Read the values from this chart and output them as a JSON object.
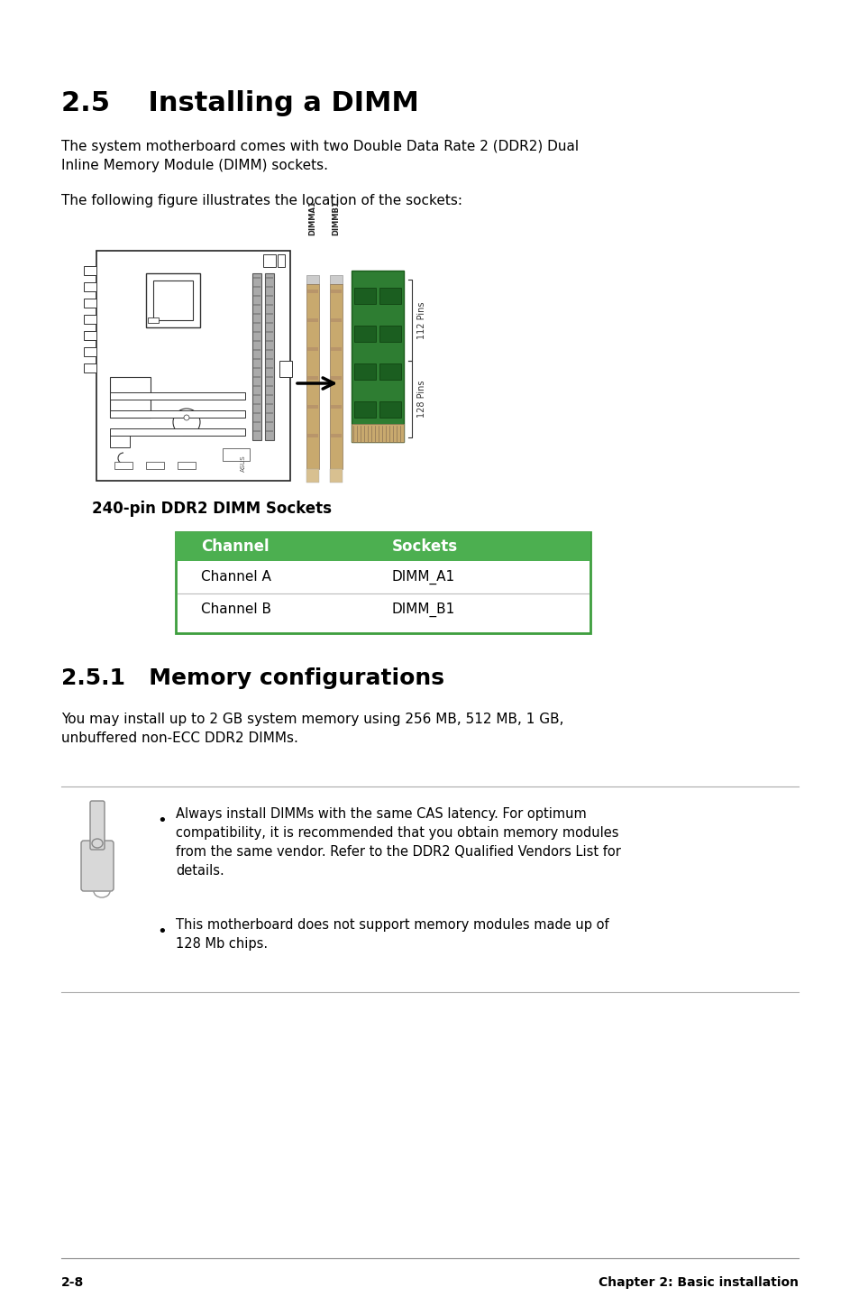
{
  "title": "2.5    Installing a DIMM",
  "section_title": "2.5.1   Memory configurations",
  "intro_text1": "The system motherboard comes with two Double Data Rate 2 (DDR2) Dual\nInline Memory Module (DIMM) sockets.",
  "intro_text2": "The following figure illustrates the location of the sockets:",
  "figure_caption": "240-pin DDR2 DIMM Sockets",
  "table_header": [
    "Channel",
    "Sockets"
  ],
  "table_rows": [
    [
      "Channel A",
      "DIMM_A1"
    ],
    [
      "Channel B",
      "DIMM_B1"
    ]
  ],
  "table_header_bg": "#4CAF50",
  "table_header_fg": "#ffffff",
  "table_border": "#3d9e3d",
  "section2_body": "You may install up to 2 GB system memory using 256 MB, 512 MB, 1 GB,\nunbuffered non-ECC DDR2 DIMMs.",
  "note_bullet1": "Always install DIMMs with the same CAS latency. For optimum\ncompatibility, it is recommended that you obtain memory modules\nfrom the same vendor. Refer to the DDR2 Qualified Vendors List for\ndetails.",
  "note_bullet2": "This motherboard does not support memory modules made up of\n128 Mb chips.",
  "footer_left": "2-8",
  "footer_right": "Chapter 2: Basic installation",
  "bg_color": "#ffffff",
  "text_color": "#000000",
  "dimm_label1": "DIMMA1",
  "dimm_label2": "DIMMB1",
  "pins_top": "112 Pins",
  "pins_bottom": "128 Pins"
}
